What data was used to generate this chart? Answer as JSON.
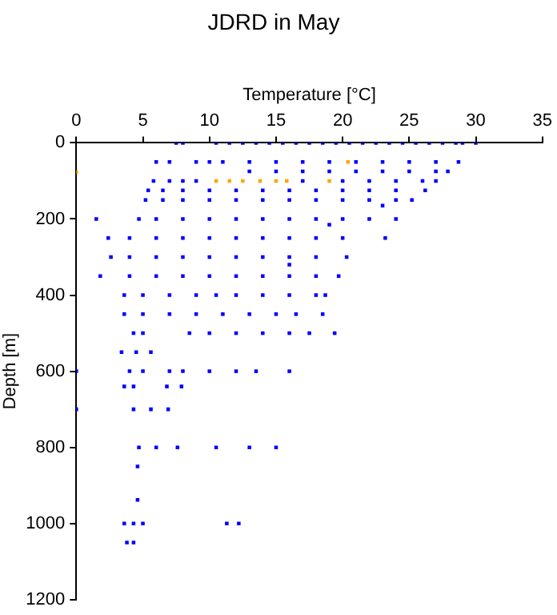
{
  "chart_data": {
    "type": "scatter",
    "title": "JDRD in May",
    "xlabel": "Temperature [°C]",
    "ylabel": "Depth [m]",
    "xlim": [
      0,
      35
    ],
    "xticks": [
      0,
      5,
      10,
      15,
      20,
      25,
      30,
      35
    ],
    "ylim": [
      1200,
      0
    ],
    "yticks": [
      0,
      200,
      400,
      600,
      800,
      1000,
      1200
    ],
    "grid": false,
    "legend": false,
    "marker": "square",
    "series": [
      {
        "color": "#0000ff",
        "x": [
          7.5,
          8,
          10.5,
          11.5,
          12.5,
          13.5,
          14.5,
          15.5,
          16.5,
          17.5,
          18.5,
          19.5,
          20.5,
          21.5,
          22.5,
          23.5,
          24.5,
          25.5,
          26.5,
          27.5,
          28.5,
          29,
          30,
          6,
          7,
          9,
          10,
          11,
          13,
          15,
          17,
          19,
          21,
          23,
          25,
          27,
          28.7,
          13,
          15,
          17,
          19,
          21,
          23,
          25,
          27,
          27.9,
          5.8,
          7,
          8,
          9,
          17,
          20,
          22,
          24,
          26,
          27,
          5.4,
          6.5,
          8,
          10,
          12,
          14,
          16,
          18,
          20,
          22,
          24,
          26.2,
          5.2,
          6.5,
          8,
          10,
          12,
          14,
          16,
          18,
          20,
          22,
          24,
          25.2,
          23,
          1.5,
          4.7,
          6,
          8,
          10,
          12,
          14,
          16,
          18,
          20,
          22,
          24,
          19,
          2.4,
          4,
          6,
          8,
          10,
          12,
          14,
          16,
          18,
          20,
          23.2,
          2.6,
          4,
          6,
          8,
          10,
          12,
          14,
          16,
          18,
          20.3,
          16,
          1.8,
          4,
          6,
          8,
          10,
          12,
          14,
          16,
          18,
          19.7,
          3.6,
          5,
          7,
          9,
          10.5,
          12,
          14,
          16,
          18,
          18.7,
          3.6,
          5,
          7,
          9,
          11,
          13,
          15,
          16.5,
          18.5,
          4.3,
          5,
          8.5,
          10,
          12,
          14,
          16,
          17.5,
          19.4,
          3.4,
          4.5,
          5.6,
          0,
          4,
          5,
          7,
          8,
          10,
          12,
          13.5,
          16,
          3.6,
          4.3,
          6.8,
          7.9,
          0,
          4.3,
          5.6,
          6.9,
          4.7,
          6,
          7.6,
          10.5,
          13,
          15,
          4.6,
          4.6,
          3.6,
          4.3,
          5,
          11.3,
          12.2,
          3.8,
          4.3
        ],
        "values": [
          0,
          0,
          0,
          0,
          0,
          0,
          0,
          0,
          0,
          0,
          0,
          0,
          0,
          0,
          0,
          0,
          0,
          0,
          0,
          0,
          0,
          0,
          0,
          50,
          50,
          50,
          50,
          50,
          50,
          50,
          50,
          50,
          50,
          50,
          50,
          50,
          50,
          75,
          75,
          75,
          75,
          75,
          75,
          75,
          75,
          75,
          100,
          100,
          100,
          100,
          100,
          100,
          100,
          100,
          100,
          100,
          125,
          125,
          125,
          125,
          125,
          125,
          125,
          125,
          125,
          125,
          125,
          125,
          150,
          150,
          150,
          150,
          150,
          150,
          150,
          150,
          150,
          150,
          150,
          150,
          165,
          200,
          200,
          200,
          200,
          200,
          200,
          200,
          200,
          200,
          200,
          200,
          200,
          215,
          250,
          250,
          250,
          250,
          250,
          250,
          250,
          250,
          250,
          250,
          250,
          300,
          300,
          300,
          300,
          300,
          300,
          300,
          300,
          300,
          300,
          320,
          350,
          350,
          350,
          350,
          350,
          350,
          350,
          350,
          350,
          350,
          400,
          400,
          400,
          400,
          400,
          400,
          400,
          400,
          400,
          400,
          450,
          450,
          450,
          450,
          450,
          450,
          450,
          450,
          450,
          500,
          500,
          500,
          500,
          500,
          500,
          500,
          500,
          500,
          550,
          550,
          550,
          600,
          600,
          600,
          600,
          600,
          600,
          600,
          600,
          600,
          640,
          640,
          640,
          640,
          700,
          700,
          700,
          700,
          800,
          800,
          800,
          800,
          800,
          800,
          850,
          938,
          1000,
          1000,
          1000,
          1000,
          1000,
          1050,
          1050
        ]
      },
      {
        "color": "#ffa500",
        "x": [
          20.4,
          0,
          10.5,
          11.5,
          12.5,
          13.8,
          15,
          15.8,
          19
        ],
        "values": [
          50,
          77,
          100,
          100,
          100,
          100,
          100,
          100,
          100
        ]
      }
    ]
  }
}
